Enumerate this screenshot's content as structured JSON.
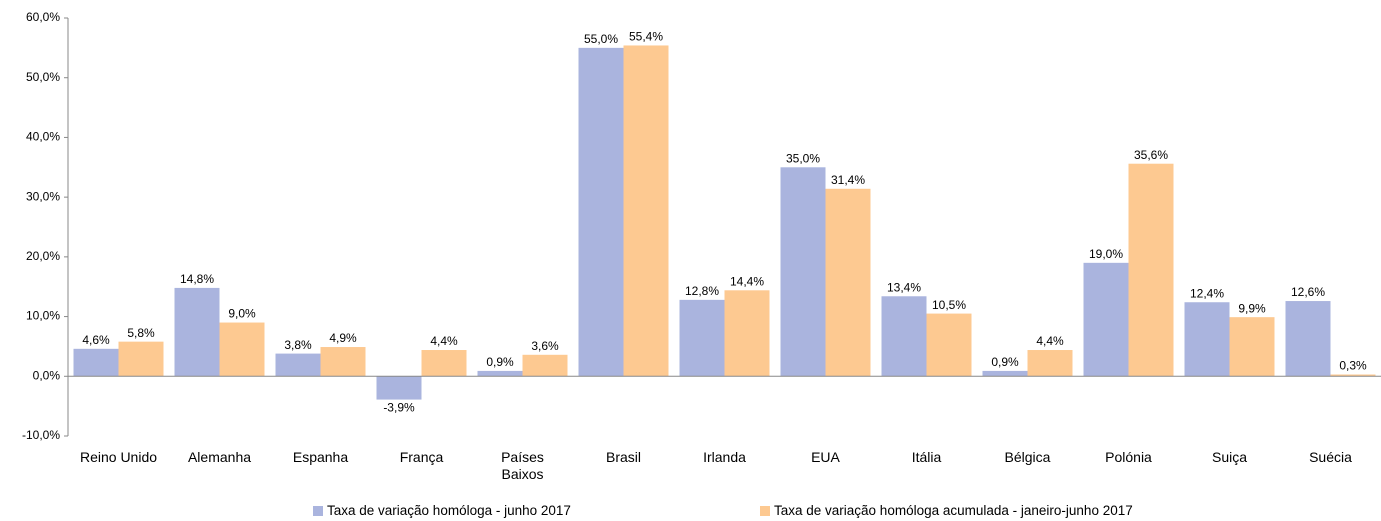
{
  "chart_data": {
    "type": "bar",
    "categories": [
      "Reino Unido",
      "Alemanha",
      "Espanha",
      "França",
      "Países Baixos",
      "Brasil",
      "Irlanda",
      "EUA",
      "Itália",
      "Bélgica",
      "Polónia",
      "Suiça",
      "Suécia"
    ],
    "series": [
      {
        "name": "Taxa de variação homóloga - junho 2017",
        "color": "#aab4de",
        "values": [
          4.6,
          14.8,
          3.8,
          -3.9,
          0.9,
          55.0,
          12.8,
          35.0,
          13.4,
          0.9,
          19.0,
          12.4,
          12.6
        ],
        "value_labels": [
          "4,6%",
          "14,8%",
          "3,8%",
          "-3,9%",
          "0,9%",
          "55,0%",
          "12,8%",
          "35,0%",
          "13,4%",
          "0,9%",
          "19,0%",
          "12,4%",
          "12,6%"
        ]
      },
      {
        "name": "Taxa de variação homóloga acumulada - janeiro-junho 2017",
        "color": "#fdc991",
        "values": [
          5.8,
          9.0,
          4.9,
          4.4,
          3.6,
          55.4,
          14.4,
          31.4,
          10.5,
          4.4,
          35.6,
          9.9,
          0.3
        ],
        "value_labels": [
          "5,8%",
          "9,0%",
          "4,9%",
          "4,4%",
          "3,6%",
          "55,4%",
          "14,4%",
          "31,4%",
          "10,5%",
          "4,4%",
          "35,6%",
          "9,9%",
          "0,3%"
        ]
      }
    ],
    "ylim": [
      -10,
      60
    ],
    "yticks": [
      {
        "value": -10,
        "label": "-10,0%"
      },
      {
        "value": 0,
        "label": "0,0%"
      },
      {
        "value": 10,
        "label": "10,0%"
      },
      {
        "value": 20,
        "label": "20,0%"
      },
      {
        "value": 30,
        "label": "30,0%"
      },
      {
        "value": 40,
        "label": "40,0%"
      },
      {
        "value": 50,
        "label": "50,0%"
      },
      {
        "value": 60,
        "label": "60,0%"
      }
    ]
  }
}
